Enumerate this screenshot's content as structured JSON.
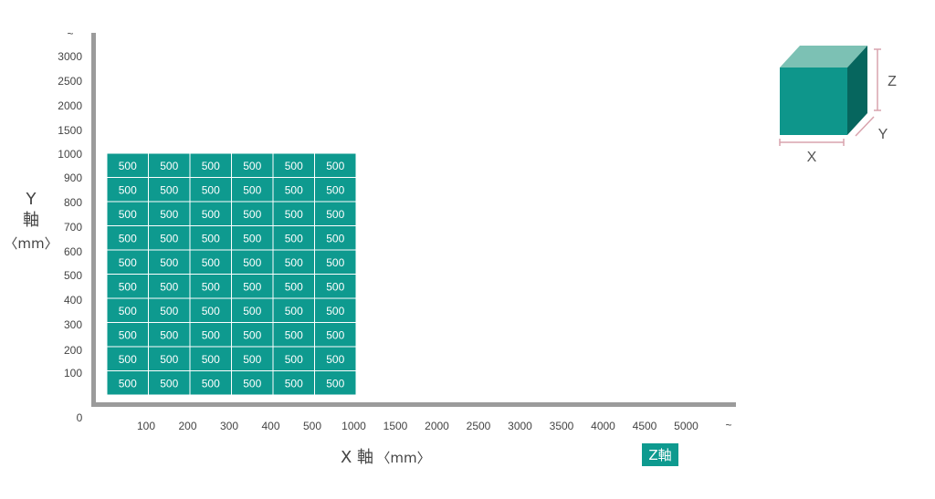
{
  "colors": {
    "cell_fill": "#0e9a8f",
    "cell_border": "#ffffff",
    "axis": "#9b9b9b",
    "text": "#444444",
    "cube_front": "#0e968b",
    "cube_top": "#7cc1b4",
    "cube_side": "#06665e",
    "dimension_line": "#d9a3ad",
    "z_badge": "#0e9a8f"
  },
  "cube_icon": {
    "x_label": "X",
    "y_label": "Y",
    "z_label": "Z"
  },
  "z_badge": {
    "label": "Z軸"
  },
  "chart_data": {
    "type": "heatmap",
    "title": "",
    "x_axis": {
      "title": "X 軸",
      "unit": "〈mm〉",
      "zero_label": "0",
      "ticks": [
        "100",
        "200",
        "300",
        "400",
        "500",
        "1000",
        "1500",
        "2000",
        "2500",
        "3000",
        "3500",
        "4000",
        "4500",
        "5000"
      ],
      "end_label": "~"
    },
    "y_axis": {
      "title_line1": "Y",
      "title_line2": "軸",
      "unit": "〈mm〉",
      "ticks": [
        "100",
        "200",
        "300",
        "400",
        "500",
        "600",
        "700",
        "800",
        "900",
        "1000",
        "1500",
        "2000",
        "2500",
        "3000"
      ],
      "end_label": "~"
    },
    "grid": {
      "x_categories": [
        "100",
        "200",
        "300",
        "400",
        "500",
        "1000"
      ],
      "y_categories": [
        "100",
        "200",
        "300",
        "400",
        "500",
        "600",
        "700",
        "800",
        "900",
        "1000"
      ],
      "values": [
        [
          500,
          500,
          500,
          500,
          500,
          500
        ],
        [
          500,
          500,
          500,
          500,
          500,
          500
        ],
        [
          500,
          500,
          500,
          500,
          500,
          500
        ],
        [
          500,
          500,
          500,
          500,
          500,
          500
        ],
        [
          500,
          500,
          500,
          500,
          500,
          500
        ],
        [
          500,
          500,
          500,
          500,
          500,
          500
        ],
        [
          500,
          500,
          500,
          500,
          500,
          500
        ],
        [
          500,
          500,
          500,
          500,
          500,
          500
        ],
        [
          500,
          500,
          500,
          500,
          500,
          500
        ],
        [
          500,
          500,
          500,
          500,
          500,
          500
        ]
      ]
    }
  }
}
